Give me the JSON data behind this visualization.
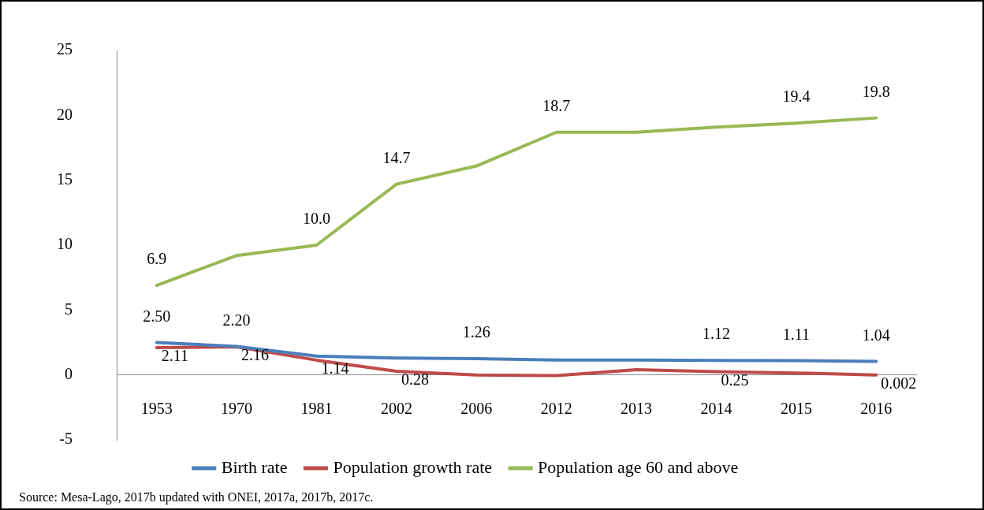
{
  "chart_data": {
    "type": "line",
    "categories": [
      "1953",
      "1970",
      "1981",
      "2002",
      "2006",
      "2012",
      "2013",
      "2014",
      "2015",
      "2016"
    ],
    "series": [
      {
        "name": "Birth rate",
        "color": "#4a7ebb",
        "values": [
          2.5,
          2.2,
          1.45,
          1.3,
          1.26,
          1.15,
          1.15,
          1.12,
          1.11,
          1.04
        ],
        "value_labels": [
          "2.50",
          "2.20",
          null,
          null,
          "1.26",
          null,
          null,
          "1.12",
          "1.11",
          "1.04"
        ]
      },
      {
        "name": "Population growth rate",
        "color": "#be4b48",
        "values": [
          2.11,
          2.16,
          1.14,
          0.28,
          0.0,
          -0.05,
          0.4,
          0.25,
          0.15,
          0.002
        ],
        "value_labels": [
          "2.11",
          "2.16",
          "1.14",
          "0.28",
          null,
          null,
          null,
          "0.25",
          null,
          "0.002"
        ]
      },
      {
        "name": "Population age 60 and above",
        "color": "#98b954",
        "values": [
          6.9,
          9.2,
          10.0,
          14.7,
          16.1,
          18.7,
          18.7,
          19.1,
          19.4,
          19.8
        ],
        "value_labels": [
          "6.9",
          null,
          "10.0",
          "14.7",
          null,
          "18.7",
          null,
          null,
          "19.4",
          "19.8"
        ]
      }
    ],
    "ylim": [
      -5,
      25
    ],
    "yticks": [
      -5,
      0,
      5,
      10,
      15,
      20,
      25
    ],
    "grid": false,
    "legend": "bottom",
    "marker": "none",
    "line_style": "solid",
    "annotations": [
      "Source: Mesa-Lago, 2017b updated with ONEI, 2017a, 2017b, 2017c."
    ]
  }
}
